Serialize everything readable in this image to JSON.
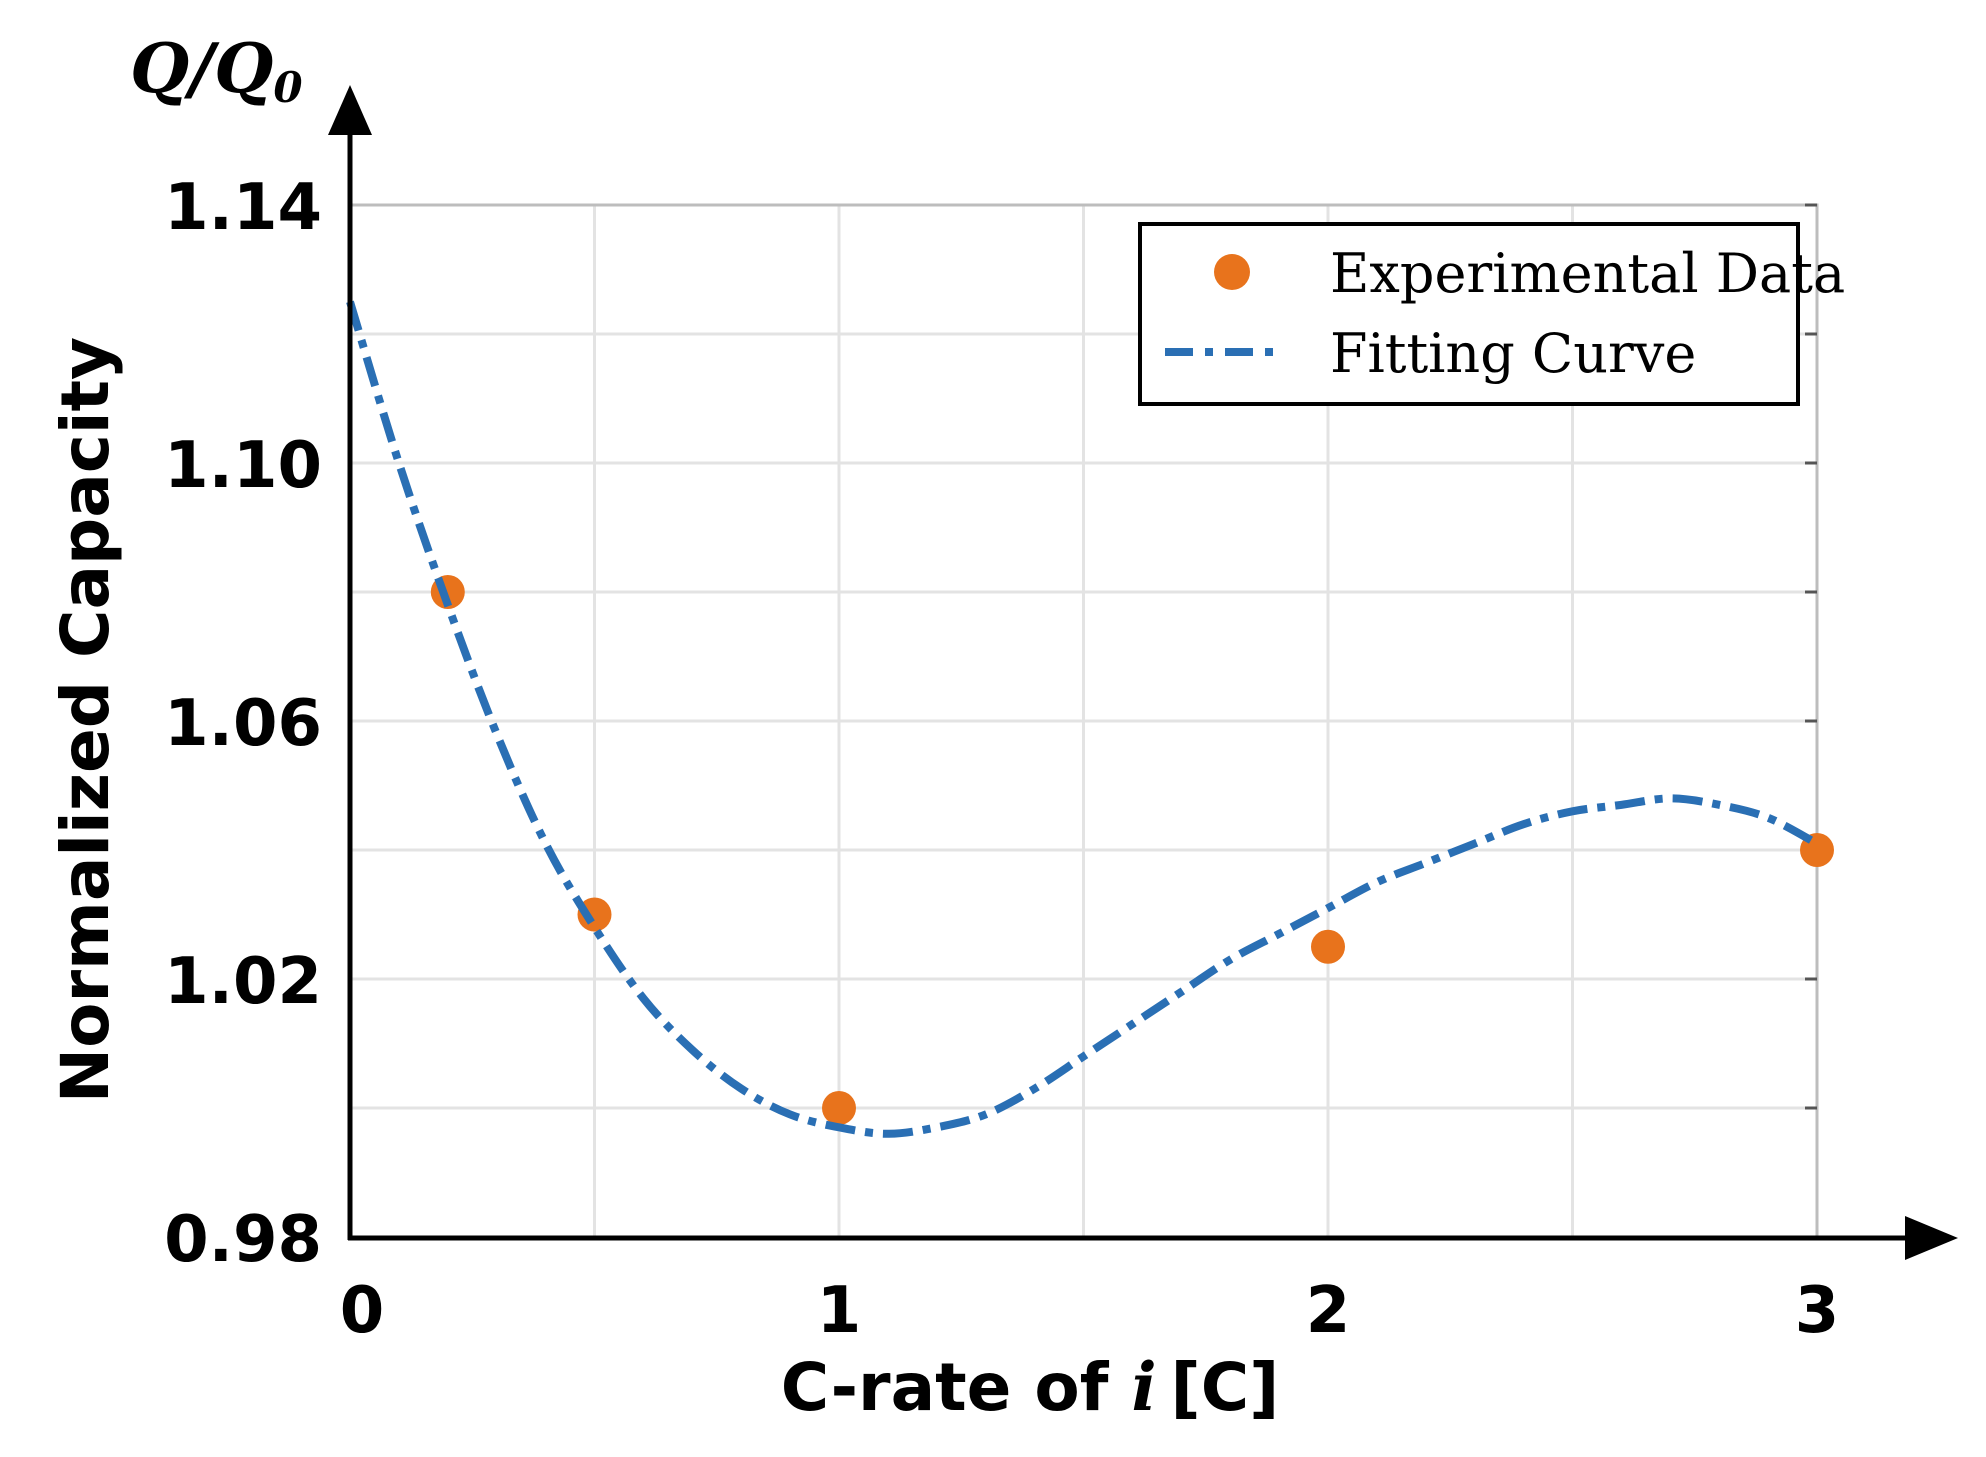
{
  "chart_data": {
    "type": "line",
    "title": "",
    "xlabel_prefix": "C-rate of ",
    "xlabel_var": "i",
    "xlabel_suffix": "[C]",
    "ylabel": "Normalized Capacity",
    "y_unit_label": "Q/Q",
    "y_unit_sub": "0",
    "xlim": [
      0,
      3
    ],
    "ylim": [
      0.98,
      1.14
    ],
    "x_ticks": [
      0,
      1,
      2,
      3
    ],
    "x_tick_labels": [
      "0",
      "1",
      "2",
      "3"
    ],
    "y_ticks": [
      0.98,
      1.02,
      1.06,
      1.1,
      1.14
    ],
    "y_tick_labels": [
      "0.98",
      "1.02",
      "1.06",
      "1.10",
      "1.14"
    ],
    "x_minor_grid": [
      0.5,
      1.5,
      2.5
    ],
    "y_minor_grid": [
      1.0,
      1.04,
      1.08,
      1.12
    ],
    "grid": true,
    "legend_position": "top-right",
    "series": [
      {
        "name": "Experimental Data",
        "kind": "scatter",
        "color": "#e8731c",
        "x": [
          0.2,
          0.5,
          1.0,
          2.0,
          3.0
        ],
        "y": [
          1.08,
          1.03,
          1.0,
          1.025,
          1.04
        ]
      },
      {
        "name": "Fitting Curve",
        "kind": "line",
        "style": "dash-dot",
        "color": "#2a6fb4",
        "x": [
          0.0,
          0.1,
          0.2,
          0.3,
          0.4,
          0.5,
          0.6,
          0.7,
          0.8,
          0.9,
          1.0,
          1.1,
          1.2,
          1.3,
          1.4,
          1.5,
          1.6,
          1.7,
          1.8,
          1.9,
          2.0,
          2.1,
          2.2,
          2.3,
          2.4,
          2.5,
          2.6,
          2.7,
          2.8,
          2.9,
          3.0
        ],
        "y": [
          1.125,
          1.1,
          1.078,
          1.058,
          1.041,
          1.028,
          1.017,
          1.009,
          1.003,
          0.999,
          0.997,
          0.996,
          0.997,
          0.999,
          1.003,
          1.008,
          1.013,
          1.018,
          1.023,
          1.027,
          1.031,
          1.035,
          1.038,
          1.041,
          1.044,
          1.046,
          1.047,
          1.048,
          1.047,
          1.045,
          1.041
        ]
      }
    ]
  }
}
